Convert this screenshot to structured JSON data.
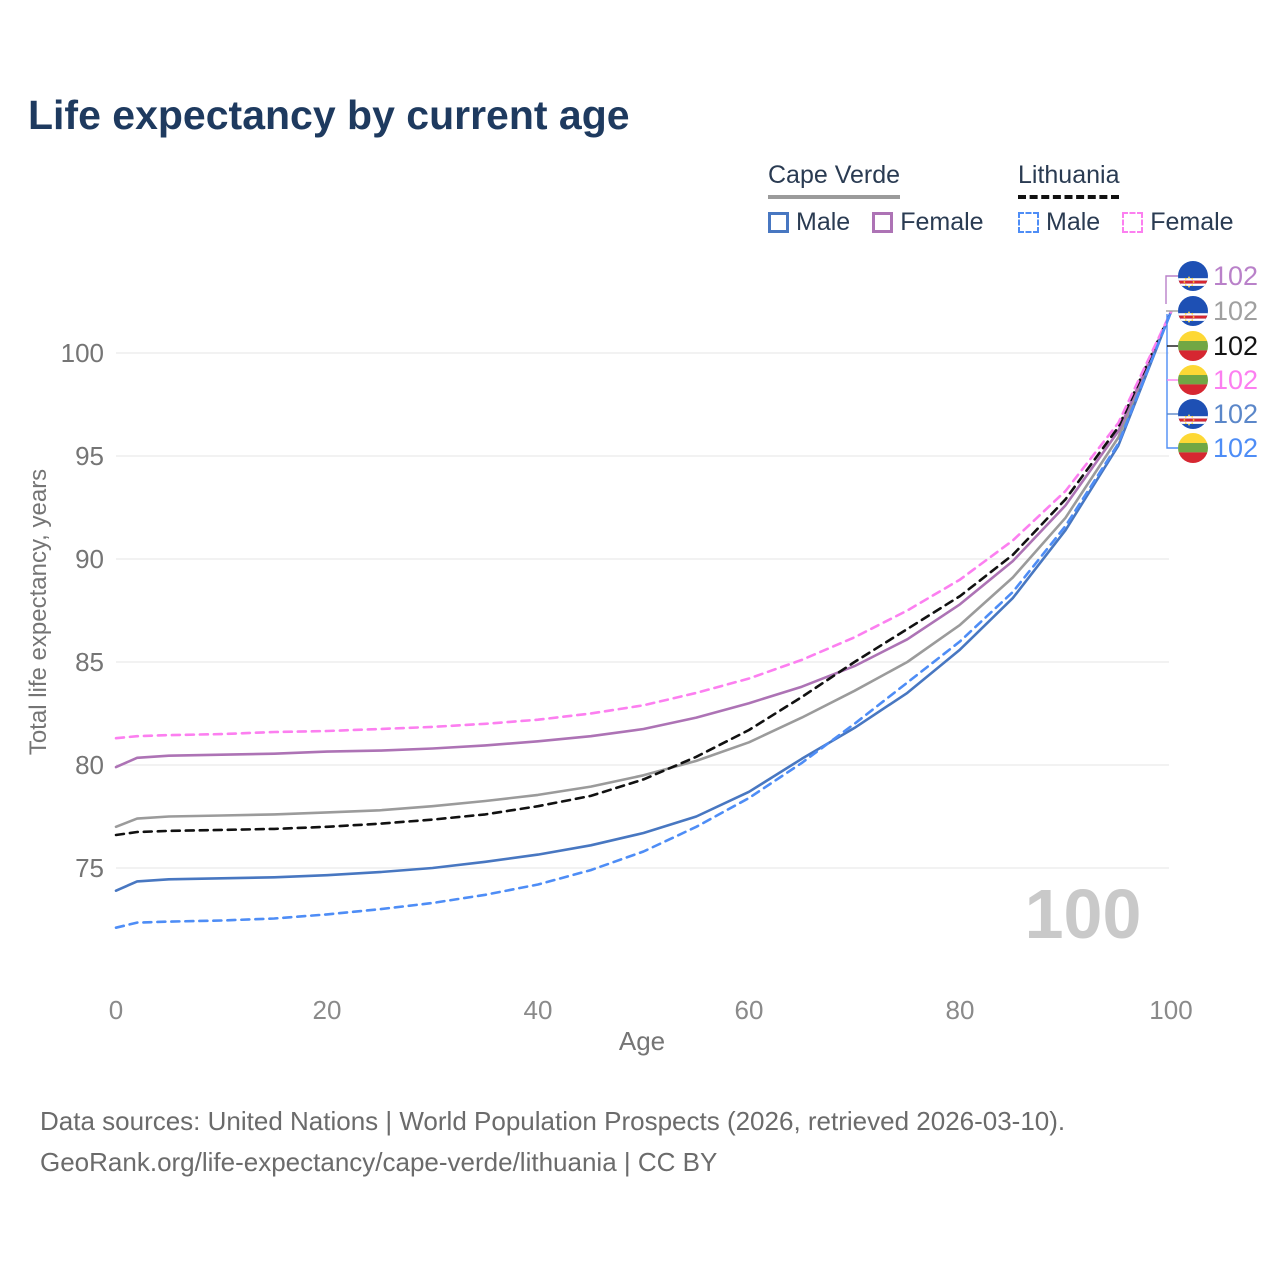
{
  "page": {
    "title": "Life expectancy by current age",
    "footer_line1": "Data sources: United Nations | World Population Prospects (2026, retrieved 2026-03-10).",
    "footer_line2": "GeoRank.org/life-expectancy/cape-verde/lithuania | CC BY"
  },
  "legend": {
    "groups": [
      {
        "country": "Cape Verde",
        "underline_style": "solid",
        "underline_color": "#9b9b9b",
        "items": [
          {
            "label": "Male",
            "color": "#4877c1",
            "dashed": false
          },
          {
            "label": "Female",
            "color": "#ad73b5",
            "dashed": false
          }
        ]
      },
      {
        "country": "Lithuania",
        "underline_style": "dashed",
        "underline_color": "#111111",
        "items": [
          {
            "label": "Male",
            "color": "#4e8df6",
            "dashed": true
          },
          {
            "label": "Female",
            "color": "#fc7ff0",
            "dashed": true
          }
        ]
      }
    ]
  },
  "chart_data": {
    "type": "line",
    "title": "Life expectancy by current age",
    "xlabel": "Age",
    "ylabel": "Total life expectancy, years",
    "xlim": [
      0,
      100
    ],
    "ylim": [
      71.5,
      102.5
    ],
    "x_ticks": [
      0,
      20,
      40,
      60,
      80,
      100
    ],
    "y_ticks": [
      75,
      80,
      85,
      90,
      95,
      100
    ],
    "grid": "horizontal",
    "legend_position": "top-right",
    "watermark": "100",
    "x": [
      0,
      2,
      5,
      10,
      15,
      20,
      25,
      30,
      35,
      40,
      45,
      50,
      55,
      60,
      65,
      70,
      75,
      80,
      85,
      90,
      95,
      100
    ],
    "series": [
      {
        "name": "Cape Verde Both",
        "country": "Cape Verde",
        "sex": "both",
        "color": "#9b9b9b",
        "dashed": false,
        "values": [
          77.0,
          77.4,
          77.5,
          77.55,
          77.6,
          77.7,
          77.8,
          78.0,
          78.25,
          78.55,
          78.95,
          79.5,
          80.2,
          81.1,
          82.3,
          83.6,
          85.0,
          86.8,
          89.1,
          92.0,
          95.9,
          102
        ]
      },
      {
        "name": "Cape Verde Female",
        "country": "Cape Verde",
        "sex": "female",
        "color": "#ad73b5",
        "dashed": false,
        "values": [
          79.9,
          80.35,
          80.45,
          80.5,
          80.55,
          80.65,
          80.7,
          80.8,
          80.95,
          81.15,
          81.4,
          81.75,
          82.3,
          83.0,
          83.8,
          84.8,
          86.1,
          87.8,
          89.9,
          92.6,
          96.2,
          102
        ]
      },
      {
        "name": "Cape Verde Male",
        "country": "Cape Verde",
        "sex": "male",
        "color": "#4877c1",
        "dashed": false,
        "values": [
          73.9,
          74.35,
          74.45,
          74.5,
          74.55,
          74.65,
          74.8,
          75.0,
          75.3,
          75.65,
          76.1,
          76.7,
          77.5,
          78.7,
          80.3,
          81.8,
          83.5,
          85.6,
          88.1,
          91.4,
          95.5,
          102
        ]
      },
      {
        "name": "Lithuania Both",
        "country": "Lithuania",
        "sex": "both",
        "color": "#111111",
        "dashed": true,
        "values": [
          76.6,
          76.75,
          76.8,
          76.85,
          76.9,
          77.0,
          77.15,
          77.35,
          77.6,
          78.0,
          78.5,
          79.3,
          80.4,
          81.7,
          83.3,
          85.0,
          86.6,
          88.2,
          90.2,
          92.9,
          96.4,
          102
        ]
      },
      {
        "name": "Lithuania Female",
        "country": "Lithuania",
        "sex": "female",
        "color": "#fc7ff0",
        "dashed": true,
        "values": [
          81.3,
          81.4,
          81.45,
          81.5,
          81.6,
          81.65,
          81.75,
          81.85,
          82.0,
          82.2,
          82.5,
          82.9,
          83.5,
          84.2,
          85.1,
          86.2,
          87.5,
          89.0,
          90.9,
          93.3,
          96.6,
          102
        ]
      },
      {
        "name": "Lithuania Male",
        "country": "Lithuania",
        "sex": "male",
        "color": "#4e8df6",
        "dashed": true,
        "values": [
          72.1,
          72.35,
          72.4,
          72.45,
          72.55,
          72.75,
          73.0,
          73.3,
          73.7,
          74.2,
          74.9,
          75.8,
          77.0,
          78.4,
          80.1,
          82.0,
          84.0,
          86.0,
          88.4,
          91.6,
          95.6,
          102
        ]
      }
    ],
    "endpoint_labels": [
      {
        "flag": "cape-verde-flag",
        "value": "102",
        "color": "#b981c9",
        "series": "Cape Verde Female"
      },
      {
        "flag": "cape-verde-flag",
        "value": "102",
        "color": "#a0a0a0",
        "series": "Cape Verde Both"
      },
      {
        "flag": "lithuania-flag",
        "value": "102",
        "color": "#141414",
        "series": "Lithuania Both"
      },
      {
        "flag": "lithuania-flag",
        "value": "102",
        "color": "#fc7ff0",
        "series": "Lithuania Female"
      },
      {
        "flag": "cape-verde-flag",
        "value": "102",
        "color": "#5b87c9",
        "series": "Cape Verde Male"
      },
      {
        "flag": "lithuania-flag",
        "value": "102",
        "color": "#4e8df6",
        "series": "Lithuania Male"
      }
    ]
  }
}
